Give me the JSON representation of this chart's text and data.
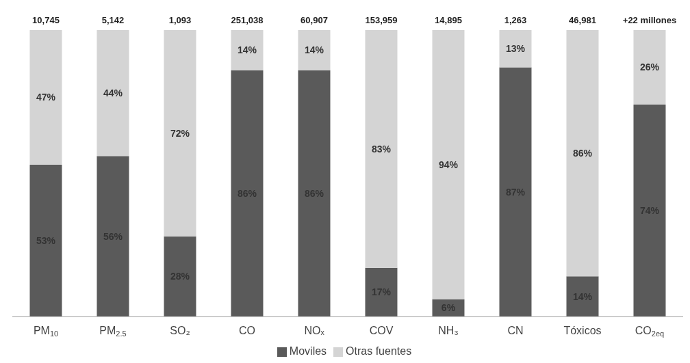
{
  "chart_data": {
    "type": "bar",
    "stacked": true,
    "categories": [
      "PM$_{10}$",
      "PM$_{2.5}$",
      "SO₂",
      "CO",
      "NOₓ",
      "COV",
      "NH₃",
      "CN",
      "Tóxicos",
      "CO$_{2eq}$"
    ],
    "series": [
      {
        "name": "Moviles",
        "color": "#5a5a5a",
        "values": [
          53,
          56,
          28,
          86,
          86,
          17,
          6,
          87,
          14,
          74
        ],
        "value_labels": [
          "53%",
          "56%",
          "28%",
          "86%",
          "86%",
          "17%",
          "6%",
          "87%",
          "14%",
          "74%"
        ]
      },
      {
        "name": "Otras fuentes",
        "color": "#d4d4d4",
        "values": [
          47,
          44,
          72,
          14,
          14,
          83,
          94,
          13,
          86,
          26
        ],
        "value_labels": [
          "47%",
          "44%",
          "72%",
          "14%",
          "14%",
          "83%",
          "94%",
          "13%",
          "86%",
          "26%"
        ]
      }
    ],
    "annotations": [
      {
        "text": "10,745",
        "x": "PM$_{10}$",
        "y": 100
      },
      {
        "text": "5,142",
        "x": "PM$_{2.5}$",
        "y": 100
      },
      {
        "text": "1,093",
        "x": "SO₂",
        "y": 100
      },
      {
        "text": "251,038",
        "x": "CO",
        "y": 100
      },
      {
        "text": "60,907",
        "x": "NOₓ",
        "y": 100
      },
      {
        "text": "153,959",
        "x": "COV",
        "y": 100
      },
      {
        "text": "14,895",
        "x": "NH₃",
        "y": 100
      },
      {
        "text": "1,263",
        "x": "CN",
        "y": 100
      },
      {
        "text": "46,981",
        "x": "Tóxicos",
        "y": 100
      },
      {
        "text": "+22 millones",
        "x": "CO$_{2eq}$",
        "y": 100
      }
    ],
    "legend": "bottom"
  }
}
